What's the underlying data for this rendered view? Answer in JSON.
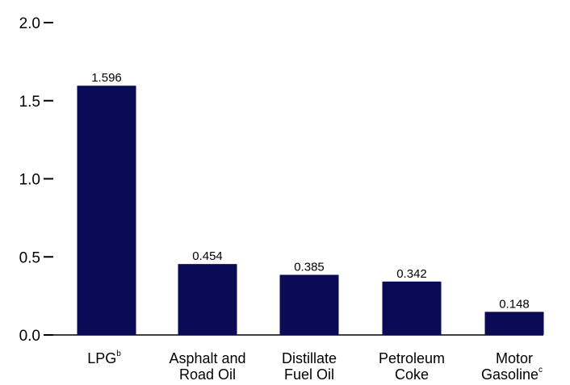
{
  "chart_data": {
    "type": "bar",
    "categories": [
      {
        "lines": [
          "LPG"
        ],
        "sup": "b"
      },
      {
        "lines": [
          "Asphalt and",
          "Road Oil"
        ],
        "sup": ""
      },
      {
        "lines": [
          "Distillate",
          "Fuel Oil"
        ],
        "sup": ""
      },
      {
        "lines": [
          "Petroleum",
          "Coke"
        ],
        "sup": ""
      },
      {
        "lines": [
          "Motor",
          "Gasoline"
        ],
        "sup": "c"
      }
    ],
    "values": [
      1.596,
      0.454,
      0.385,
      0.342,
      0.148
    ],
    "data_labels": [
      "1.596",
      "0.454",
      "0.385",
      "0.342",
      "0.148"
    ],
    "yticks": [
      0.0,
      0.5,
      1.0,
      1.5,
      2.0
    ],
    "ytick_labels": [
      "0.0",
      "0.5",
      "1.0",
      "1.5",
      "2.0"
    ],
    "ylim": [
      0,
      2.0
    ],
    "bar_color": "#0b0b55",
    "grid": false
  }
}
